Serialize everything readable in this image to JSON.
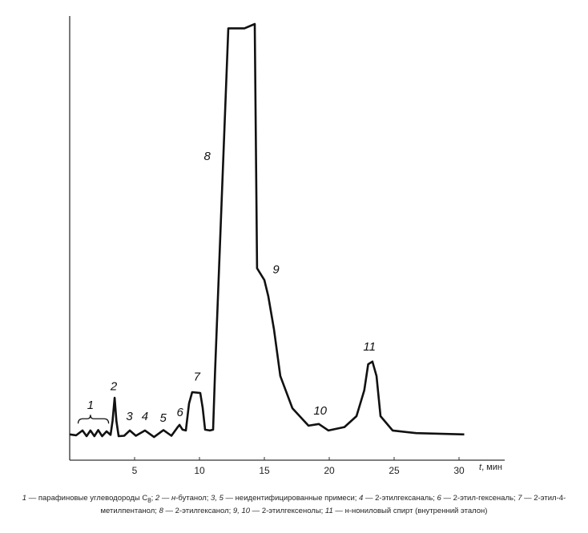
{
  "chart_data": {
    "type": "line",
    "title": "",
    "xlabel": "t, мин",
    "xlabel_var": "t",
    "xlabel_unit": ", мин",
    "ylabel": "",
    "xlim": [
      0,
      33.5
    ],
    "ylim": [
      0,
      100
    ],
    "y_units": "relative detector signal (no scale printed)",
    "grid": false,
    "line_color": "#111111",
    "xticks": [
      5,
      10,
      15,
      20,
      25,
      30
    ],
    "series": [
      {
        "x": [
          0,
          0.5,
          0.99,
          1.3,
          1.6,
          1.9,
          2.2,
          2.5,
          2.84,
          3.15,
          3.3,
          3.46,
          3.6,
          3.77,
          4.2,
          4.63,
          5.1,
          5.8,
          6.5,
          7.22,
          7.84,
          8.3,
          8.46,
          8.7,
          8.95,
          9.2,
          9.44,
          10.06,
          10.25,
          10.43,
          10.8,
          11.05,
          11.2,
          12.22,
          13.46,
          14.26,
          14.44,
          15.0,
          15.3,
          15.74,
          16.23,
          17.16,
          18.4,
          19.2,
          19.94,
          21.17,
          22.1,
          22.7,
          23.0,
          23.33,
          23.64,
          23.95,
          24.88,
          26.7,
          30.4
        ],
        "y": [
          5.9,
          5.7,
          6.8,
          5.5,
          6.8,
          5.5,
          6.9,
          5.5,
          6.6,
          5.8,
          9,
          14.3,
          9,
          5.5,
          5.6,
          6.8,
          5.6,
          6.8,
          5.3,
          6.9,
          5.6,
          7.5,
          8.1,
          7.0,
          6.8,
          13,
          15.6,
          15.4,
          12,
          7.0,
          6.8,
          7.0,
          20,
          99,
          99,
          100,
          44,
          41.3,
          37.6,
          30,
          19.3,
          11.9,
          7.9,
          8.3,
          6.8,
          7.6,
          10.1,
          16,
          22,
          22.6,
          19.3,
          10.1,
          6.8,
          6.2,
          5.9
        ]
      }
    ],
    "annotations": [
      {
        "text": "1",
        "x": 1.6,
        "y": 11.7,
        "brace": [
          0.65,
          3.0
        ]
      },
      {
        "text": "2",
        "x": 3.4,
        "y": 16.1
      },
      {
        "text": "3",
        "x": 4.6,
        "y": 9.2
      },
      {
        "text": "4",
        "x": 5.8,
        "y": 9.2
      },
      {
        "text": "5",
        "x": 7.2,
        "y": 8.8
      },
      {
        "text": "6",
        "x": 8.5,
        "y": 10.1
      },
      {
        "text": "7",
        "x": 9.8,
        "y": 18.3
      },
      {
        "text": "8",
        "x": 10.6,
        "y": 68.8
      },
      {
        "text": "9",
        "x": 15.9,
        "y": 42.8
      },
      {
        "text": "10",
        "x": 19.3,
        "y": 10.5
      },
      {
        "text": "11",
        "x": 23.1,
        "y": 25.1
      }
    ]
  },
  "caption": {
    "parts": [
      {
        "n": "1",
        "t": " — парафиновые углеводороды С"
      },
      {
        "sub": "8"
      },
      {
        "t": "; "
      },
      {
        "n": "2",
        "t": " — "
      },
      {
        "i": "н"
      },
      {
        "t": "-бутанол; "
      },
      {
        "n": "3, 5",
        "t": " — неидентифицированные примеси; "
      },
      {
        "n": "4",
        "t": " — 2-этилгексаналь; "
      },
      {
        "n": "6",
        "t": " — 2-этил-гексеналь; "
      },
      {
        "n": "7",
        "t": " — 2-этил-4-метилпентанол; "
      },
      {
        "n": "8",
        "t": " — 2-этилгексанол; "
      },
      {
        "n": "9, 10",
        "t": " — 2-этилгексенолы; "
      },
      {
        "n": "11",
        "t": " — н-нониловый спирт (внутренний эталон)"
      }
    ]
  }
}
